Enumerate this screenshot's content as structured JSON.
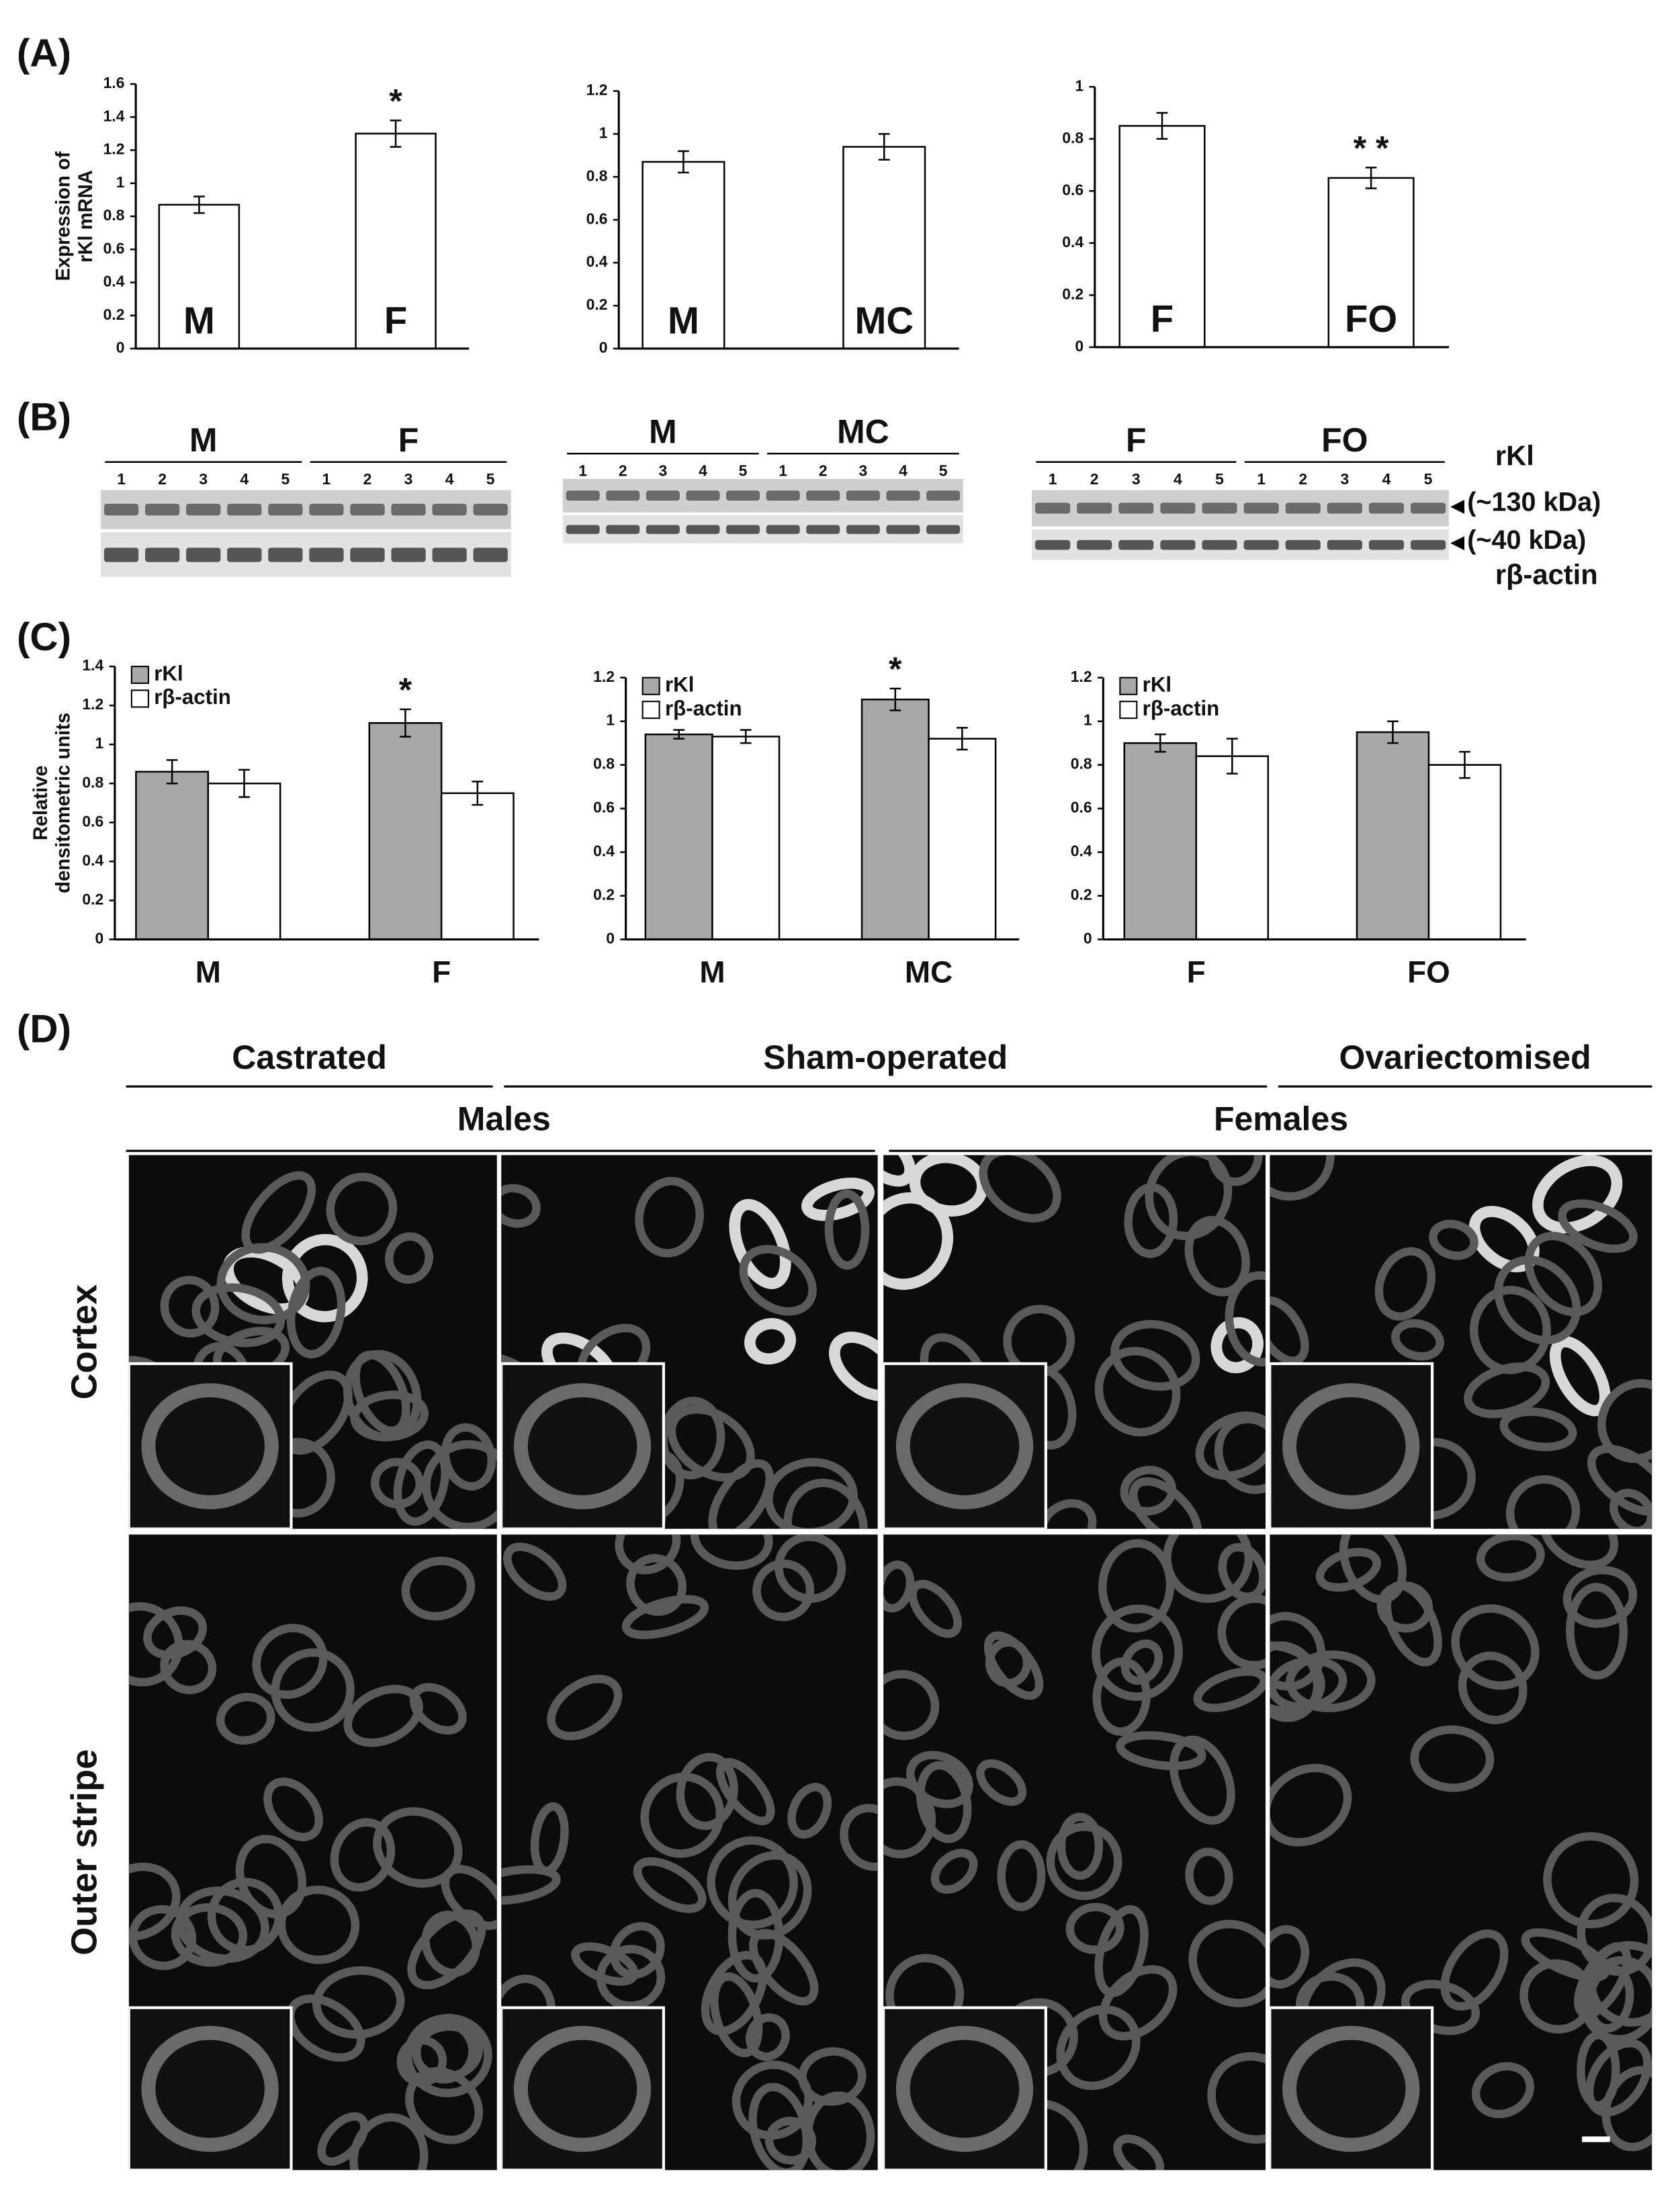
{
  "chart_data": [
    {
      "type": "bar",
      "ylabel": [
        "Expression of",
        "rKl mRNA"
      ],
      "categories": [
        "M",
        "F"
      ],
      "values": [
        0.87,
        1.3
      ],
      "errors": [
        0.05,
        0.08
      ],
      "color": "#ffffff",
      "ylim": [
        0,
        1.6
      ],
      "yticks": [
        0,
        0.2,
        0.4,
        0.6,
        0.8,
        1,
        1.2,
        1.4,
        1.6
      ],
      "annotations": [
        {
          "text": "*",
          "category": "F"
        }
      ]
    },
    {
      "type": "bar",
      "categories": [
        "M",
        "MC"
      ],
      "values": [
        0.87,
        0.94
      ],
      "errors": [
        0.05,
        0.06
      ],
      "color": "#ffffff",
      "ylim": [
        0,
        1.2
      ],
      "yticks": [
        0,
        0.2,
        0.4,
        0.6,
        0.8,
        1,
        1.2
      ]
    },
    {
      "type": "bar",
      "categories": [
        "F",
        "FO"
      ],
      "values": [
        0.85,
        0.65
      ],
      "errors": [
        0.05,
        0.04
      ],
      "color": "#ffffff",
      "ylim": [
        0,
        1
      ],
      "yticks": [
        0,
        0.2,
        0.4,
        0.6,
        0.8,
        1
      ],
      "annotations": [
        {
          "text": "* *",
          "category": "FO"
        }
      ]
    },
    {
      "type": "bar",
      "ylabel": [
        "Relative",
        "densitometric units"
      ],
      "categories": [
        "M",
        "F"
      ],
      "series": [
        {
          "name": "rKl",
          "color": "#a8a8a8",
          "values": [
            0.86,
            1.11
          ],
          "errors": [
            0.06,
            0.07
          ]
        },
        {
          "name": "rβ-actin",
          "color": "#ffffff",
          "values": [
            0.8,
            0.75
          ],
          "errors": [
            0.07,
            0.06
          ]
        }
      ],
      "ylim": [
        0,
        1.4
      ],
      "yticks": [
        0,
        0.2,
        0.4,
        0.6,
        0.8,
        1,
        1.2,
        1.4
      ],
      "legend": "upper left",
      "annotations": [
        {
          "text": "*",
          "category": "F",
          "series": "rKl"
        }
      ]
    },
    {
      "type": "bar",
      "categories": [
        "M",
        "MC"
      ],
      "series": [
        {
          "name": "rKl",
          "color": "#a8a8a8",
          "values": [
            0.94,
            1.1
          ],
          "errors": [
            0.02,
            0.05
          ]
        },
        {
          "name": "rβ-actin",
          "color": "#ffffff",
          "values": [
            0.93,
            0.92
          ],
          "errors": [
            0.03,
            0.05
          ]
        }
      ],
      "ylim": [
        0,
        1.2
      ],
      "yticks": [
        0,
        0.2,
        0.4,
        0.6,
        0.8,
        1,
        1.2
      ],
      "legend": "upper left",
      "annotations": [
        {
          "text": "*",
          "category": "MC",
          "series": "rKl"
        }
      ]
    },
    {
      "type": "bar",
      "categories": [
        "F",
        "FO"
      ],
      "series": [
        {
          "name": "rKl",
          "color": "#a8a8a8",
          "values": [
            0.9,
            0.95
          ],
          "errors": [
            0.04,
            0.05
          ]
        },
        {
          "name": "rβ-actin",
          "color": "#ffffff",
          "values": [
            0.84,
            0.8
          ],
          "errors": [
            0.08,
            0.06
          ]
        }
      ],
      "ylim": [
        0,
        1.2
      ],
      "yticks": [
        0,
        0.2,
        0.4,
        0.6,
        0.8,
        1,
        1.2
      ],
      "legend": "upper left"
    }
  ],
  "panel_labels": [
    "(A)",
    "(B)",
    "(C)",
    "(D)"
  ],
  "blots": [
    {
      "groups": [
        "M",
        "F"
      ],
      "lanes": [
        "1",
        "2",
        "3",
        "4",
        "5"
      ]
    },
    {
      "groups": [
        "M",
        "MC"
      ],
      "lanes": [
        "1",
        "2",
        "3",
        "4",
        "5"
      ]
    },
    {
      "groups": [
        "F",
        "FO"
      ],
      "lanes": [
        "1",
        "2",
        "3",
        "4",
        "5"
      ]
    }
  ],
  "blot_labels": {
    "protein": "rKl",
    "upper": "(~130 kDa)",
    "lower": "(~40 kDa)",
    "control": "rβ-actin"
  },
  "micrographs": {
    "conditions": [
      "Castrated",
      "Sham-operated",
      "Ovariectomised"
    ],
    "sexes": [
      "Males",
      "Females"
    ],
    "rows": [
      "Cortex",
      "Outer stripe"
    ]
  }
}
